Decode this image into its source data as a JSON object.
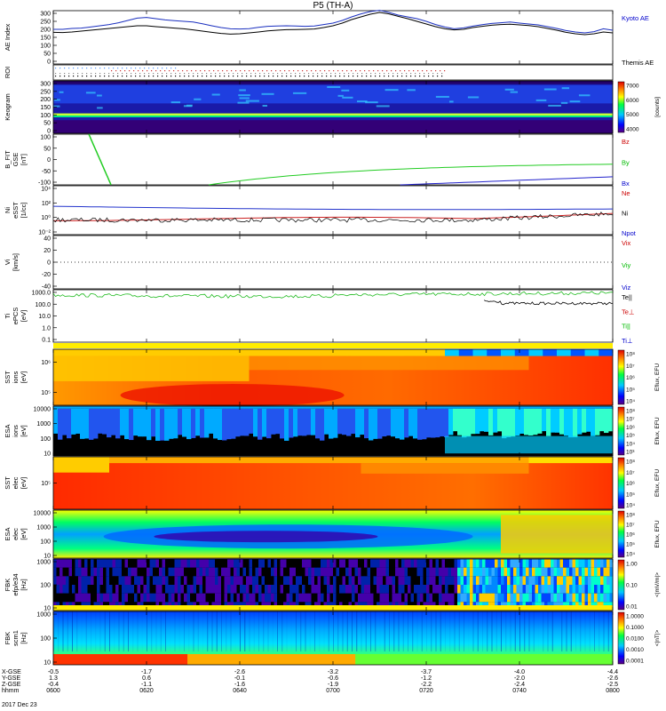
{
  "chart_data": {
    "type": "multi-panel time series (THEMIS summary plot)",
    "title": "P5 (TH-A)",
    "time_ticks": [
      "0600",
      "0620",
      "0640",
      "0700",
      "0720",
      "0740",
      "0800"
    ],
    "date": "2017 Dec 23",
    "orbit_labels": [
      "X-GSE",
      "Y-GSE",
      "Z-GSE",
      "hhmm"
    ],
    "orbit": {
      "X": [
        "-0.5",
        "-1.7",
        "-2.6",
        "-3.2",
        "-3.7",
        "-4.0",
        "-4.4"
      ],
      "Y": [
        "1.3",
        "0.6",
        "-0.1",
        "-0.6",
        "-1.2",
        "-2.0",
        "-2.6"
      ],
      "Z": [
        "-0.4",
        "-1.1",
        "-1.6",
        "-1.9",
        "-2.2",
        "-2.4",
        "-2.5"
      ]
    },
    "panels": [
      {
        "id": "ae",
        "ylabel": [
          "AE Index"
        ],
        "ylim": [
          0,
          300
        ],
        "yticks": [
          "300",
          "250",
          "200",
          "150",
          "100",
          "50",
          "0"
        ],
        "legend": [
          {
            "name": "Kyoto AE",
            "color": "#0000cc"
          },
          {
            "name": "Themis AE",
            "color": "#000000"
          }
        ],
        "series": [
          {
            "name": "Kyoto AE",
            "color": "#1a2fbf",
            "values": [
              195,
              195,
              200,
              202,
              208,
              215,
              222,
              232,
              245,
              258,
              262,
              255,
              248,
              244,
              240,
              236,
              226,
              215,
              205,
              198,
              197,
              199,
              206,
              212,
              214,
              215,
              214,
              212,
              214,
              222,
              230,
              245,
              265,
              282,
              295,
              302,
              290,
              275,
              265,
              255,
              240,
              222,
              208,
              198,
              203,
              213,
              221,
              228,
              232,
              236,
              230,
              225,
              220,
              210,
              200,
              188,
              180,
              175,
              182,
              198,
              190
            ]
          },
          {
            "name": "Themis AE",
            "color": "#000000",
            "values": [
              178,
              177,
              180,
              185,
              190,
              195,
              200,
              205,
              210,
              215,
              215,
              210,
              206,
              202,
              198,
              192,
              185,
              178,
              172,
              168,
              170,
              175,
              180,
              186,
              190,
              193,
              194,
              195,
              197,
              205,
              215,
              230,
              250,
              265,
              280,
              290,
              282,
              268,
              255,
              240,
              225,
              210,
              198,
              192,
              195,
              205,
              212,
              218,
              222,
              224,
              220,
              216,
              210,
              200,
              190,
              178,
              170,
              165,
              170,
              180,
              175
            ]
          }
        ]
      },
      {
        "id": "roi",
        "ylabel": [
          "ROI"
        ]
      },
      {
        "id": "keogram",
        "ylabel": [
          "Keogram"
        ],
        "yticks": [
          "300",
          "250",
          "200",
          "150",
          "100",
          "50",
          "0"
        ],
        "colorbar": {
          "label": "[counts]",
          "ticks": [
            "7000",
            "6000",
            "5000",
            "4000"
          ]
        }
      },
      {
        "id": "bfit",
        "ylabel": [
          "B_FIT",
          "GSE",
          "[nT]"
        ],
        "ylim": [
          -100,
          100
        ],
        "yticks": [
          "100",
          "50",
          "0",
          "-50",
          "-100"
        ],
        "legend": [
          {
            "name": "Bz",
            "color": "#cc0000"
          },
          {
            "name": "By",
            "color": "#00bb00"
          },
          {
            "name": "Bx",
            "color": "#0000cc"
          }
        ]
      },
      {
        "id": "ni",
        "ylabel": [
          "Ni",
          "eSST",
          "[1/cc]"
        ],
        "yticks": [
          "10⁴",
          "10²",
          "10⁰",
          "10⁻²"
        ],
        "legend": [
          {
            "name": "Ne",
            "color": "#cc0000"
          },
          {
            "name": "Ni",
            "color": "#000000"
          },
          {
            "name": "Npot",
            "color": "#0000cc"
          }
        ]
      },
      {
        "id": "vi",
        "ylabel": [
          "Vi",
          "[km/s]"
        ],
        "ylim": [
          -50,
          50
        ],
        "yticks": [
          "40",
          "20",
          "0",
          "-20",
          "-40"
        ],
        "legend": [
          {
            "name": "Vix",
            "color": "#cc0000"
          },
          {
            "name": "Viy",
            "color": "#00bb00"
          },
          {
            "name": "Viz",
            "color": "#0000cc"
          }
        ]
      },
      {
        "id": "ti",
        "ylabel": [
          "Ti",
          "ePCS",
          "[eV]"
        ],
        "yticks": [
          "1000.0",
          "100.0",
          "10.0",
          "1.0",
          "0.1"
        ],
        "legend": [
          {
            "name": "Te||",
            "color": "#000000"
          },
          {
            "name": "Te⊥",
            "color": "#cc0000"
          },
          {
            "name": "Ti||",
            "color": "#00bb00"
          },
          {
            "name": "Ti⊥",
            "color": "#0000cc"
          }
        ]
      },
      {
        "id": "sst_i",
        "ylabel": [
          "SST",
          "ions",
          "[eV]"
        ],
        "yticks": [
          "10⁶",
          "10⁵"
        ],
        "colorbar": {
          "label": "Eflux, EFU",
          "ticks": [
            "10⁸",
            "10⁷",
            "10⁶",
            "10⁵",
            "10⁴"
          ]
        }
      },
      {
        "id": "esa_i",
        "ylabel": [
          "ESA",
          "ions",
          "[eV]"
        ],
        "yticks": [
          "10000",
          "1000",
          "100",
          "10"
        ],
        "colorbar": {
          "label": "Eflux, EFU",
          "ticks": [
            "10⁸",
            "10⁷",
            "10⁶",
            "10⁵",
            "10⁴",
            "10³"
          ]
        }
      },
      {
        "id": "sst_e",
        "ylabel": [
          "SST",
          "elec",
          "[eV]"
        ],
        "yticks": [
          "10⁵"
        ],
        "colorbar": {
          "label": "Eflux, EFU",
          "ticks": [
            "10⁸",
            "10⁷",
            "10⁶",
            "10⁵",
            "10⁴"
          ]
        }
      },
      {
        "id": "esa_e",
        "ylabel": [
          "ESA",
          "elec",
          "[eV]"
        ],
        "yticks": [
          "10000",
          "1000",
          "100",
          "10"
        ],
        "colorbar": {
          "label": "Eflux, EFU",
          "ticks": [
            "10⁸",
            "10⁷",
            "10⁶",
            "10⁵",
            "10⁴"
          ]
        }
      },
      {
        "id": "fbk_e",
        "ylabel": [
          "FBK",
          "efp/e34",
          "[Hz]"
        ],
        "yticks": [
          "1000",
          "100",
          "10"
        ],
        "colorbar": {
          "label": "<|mV/m|>",
          "ticks": [
            "1.00",
            "0.10",
            "0.01"
          ]
        }
      },
      {
        "id": "fbk_b",
        "ylabel": [
          "FBK",
          "scm1",
          "[Hz]"
        ],
        "yticks": [
          "1000",
          "100",
          "10"
        ],
        "colorbar": {
          "label": "<|nT|>",
          "ticks": [
            "1.0000",
            "0.1000",
            "0.0100",
            "0.0010",
            "0.0001"
          ]
        }
      }
    ]
  }
}
